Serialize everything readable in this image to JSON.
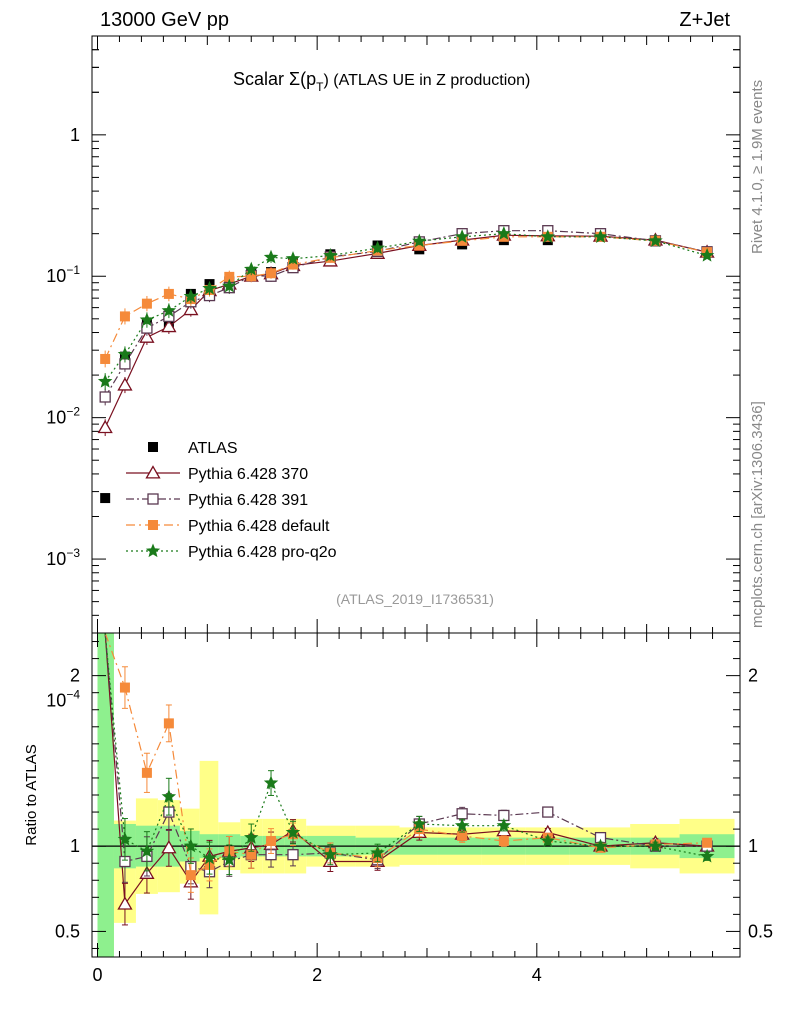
{
  "header": {
    "left": "13000 GeV pp",
    "right": "Z+Jet"
  },
  "side": {
    "top": "Rivet 4.1.0, ≥ 1.9M events",
    "bottom": "mcplots.cern.ch [arXiv:1306.3436]"
  },
  "chart_data": {
    "type": "line",
    "title": "Scalar Σ(p_T) (ATLAS UE in Z production)",
    "title_main": "Scalar Σ(p",
    "title_sub": "T",
    "title_rest": ") (ATLAS UE in Z production)",
    "analysis_label": "(ATLAS_2019_I1736531)",
    "xlabel": "",
    "xlim": [
      -0.05,
      5.85
    ],
    "x_ticks": [
      "0",
      "2",
      "4"
    ],
    "main": {
      "yscale": "log",
      "ylim": [
        0.0003,
        5
      ],
      "y_ticks": [
        {
          "base": "1",
          "exp": ""
        },
        {
          "base": "10",
          "exp": "−1"
        },
        {
          "base": "10",
          "exp": "−2"
        },
        {
          "base": "10",
          "exp": "−3"
        },
        {
          "base": "10",
          "exp": "−4"
        }
      ]
    },
    "ratio": {
      "ylabel": "Ratio to ATLAS",
      "ylim": [
        0.35,
        2.25
      ],
      "y_ticks": [
        "0.5",
        "1",
        "2"
      ]
    },
    "x": [
      0.07,
      0.25,
      0.45,
      0.65,
      0.85,
      1.02,
      1.2,
      1.4,
      1.58,
      1.78,
      2.12,
      2.55,
      2.93,
      3.32,
      3.7,
      4.1,
      4.58,
      5.08,
      5.55
    ],
    "series": [
      {
        "name": "ATLAS",
        "color": "#000000",
        "marker": "filled-square",
        "values": [
          0.0027,
          0.027,
          0.047,
          0.044,
          0.075,
          0.088,
          0.092,
          0.107,
          0.107,
          0.123,
          0.143,
          0.165,
          0.155,
          0.168,
          0.18,
          0.18,
          0.192,
          0.177,
          0.148
        ],
        "ratio": [
          1,
          1,
          1,
          1,
          1,
          1,
          1,
          1,
          1,
          1,
          1,
          1,
          1,
          1,
          1,
          1,
          1,
          1,
          1
        ]
      },
      {
        "name": "Pythia 6.428 370",
        "color": "#7a1020",
        "marker": "open-triangle",
        "dash": "",
        "values": [
          0.0085,
          0.017,
          0.037,
          0.044,
          0.058,
          0.079,
          0.088,
          0.1,
          0.104,
          0.119,
          0.128,
          0.145,
          0.165,
          0.18,
          0.195,
          0.193,
          0.192,
          0.18,
          0.148
        ],
        "ratio": [
          3.1,
          0.66,
          0.84,
          0.99,
          0.79,
          0.94,
          0.97,
          0.99,
          1.01,
          1.09,
          0.91,
          0.91,
          1.08,
          1.07,
          1.09,
          1.08,
          1.0,
          1.02,
          1.0
        ]
      },
      {
        "name": "Pythia 6.428 391",
        "color": "#5a3850",
        "marker": "open-square",
        "dash": "8,3,2,3",
        "values": [
          0.014,
          0.024,
          0.043,
          0.052,
          0.066,
          0.073,
          0.083,
          0.101,
          0.1,
          0.115,
          0.137,
          0.15,
          0.175,
          0.2,
          0.21,
          0.21,
          0.2,
          0.178,
          0.149
        ],
        "ratio": [
          5.2,
          0.91,
          0.94,
          1.2,
          0.88,
          0.85,
          0.91,
          0.95,
          0.95,
          0.95,
          0.96,
          0.92,
          1.13,
          1.19,
          1.18,
          1.2,
          1.05,
          1.0,
          1.0
        ]
      },
      {
        "name": "Pythia 6.428 default",
        "color": "#f58a3a",
        "marker": "filled-square",
        "dash": "9,4,2,4",
        "values": [
          0.026,
          0.052,
          0.064,
          0.075,
          0.069,
          0.08,
          0.099,
          0.1,
          0.105,
          0.121,
          0.135,
          0.152,
          0.165,
          0.178,
          0.19,
          0.19,
          0.19,
          0.178,
          0.148
        ],
        "ratio": [
          9.5,
          1.93,
          1.43,
          1.72,
          0.83,
          0.89,
          0.97,
          0.95,
          1.03,
          1.07,
          0.96,
          0.93,
          1.1,
          1.06,
          1.03,
          1.05,
          0.99,
          1.01,
          1.02
        ]
      },
      {
        "name": "Pythia 6.428 pro-q2o",
        "color": "#1a7a1a",
        "marker": "open-star",
        "dash": "2,3",
        "values": [
          0.018,
          0.028,
          0.049,
          0.057,
          0.072,
          0.082,
          0.085,
          0.112,
          0.136,
          0.133,
          0.14,
          0.158,
          0.177,
          0.19,
          0.2,
          0.19,
          0.19,
          0.178,
          0.14
        ],
        "ratio": [
          6.6,
          1.04,
          0.97,
          1.29,
          1.0,
          0.93,
          0.92,
          1.05,
          1.37,
          1.08,
          0.95,
          0.96,
          1.13,
          1.12,
          1.12,
          1.03,
          1.0,
          1.0,
          0.94
        ]
      }
    ],
    "bands": {
      "x_edges": [
        0.0,
        0.15,
        0.35,
        0.55,
        0.75,
        0.93,
        1.1,
        1.3,
        1.5,
        1.7,
        1.9,
        2.35,
        2.75,
        3.1,
        3.5,
        3.9,
        4.3,
        4.85,
        5.3,
        5.8
      ],
      "inner": [
        [
          0.3,
          2.3
        ],
        [
          0.87,
          1.13
        ],
        [
          0.88,
          1.12
        ],
        [
          0.88,
          1.12
        ],
        [
          0.91,
          1.09
        ],
        [
          0.93,
          1.07
        ],
        [
          0.93,
          1.07
        ],
        [
          0.94,
          1.06
        ],
        [
          0.94,
          1.06
        ],
        [
          0.94,
          1.06
        ],
        [
          0.94,
          1.06
        ],
        [
          0.95,
          1.05
        ],
        [
          0.95,
          1.05
        ],
        [
          0.95,
          1.05
        ],
        [
          0.95,
          1.05
        ],
        [
          0.95,
          1.05
        ],
        [
          0.95,
          1.05
        ],
        [
          0.95,
          1.05
        ],
        [
          0.93,
          1.07
        ]
      ],
      "outer": [
        [
          0.3,
          2.3
        ],
        [
          0.55,
          1.15
        ],
        [
          0.72,
          1.28
        ],
        [
          0.73,
          1.27
        ],
        [
          0.78,
          1.22
        ],
        [
          0.6,
          1.5
        ],
        [
          0.86,
          1.14
        ],
        [
          0.84,
          1.16
        ],
        [
          0.84,
          1.16
        ],
        [
          0.84,
          1.16
        ],
        [
          0.88,
          1.12
        ],
        [
          0.88,
          1.12
        ],
        [
          0.89,
          1.11
        ],
        [
          0.89,
          1.11
        ],
        [
          0.89,
          1.11
        ],
        [
          0.89,
          1.11
        ],
        [
          0.89,
          1.11
        ],
        [
          0.87,
          1.13
        ],
        [
          0.84,
          1.16
        ]
      ]
    }
  }
}
